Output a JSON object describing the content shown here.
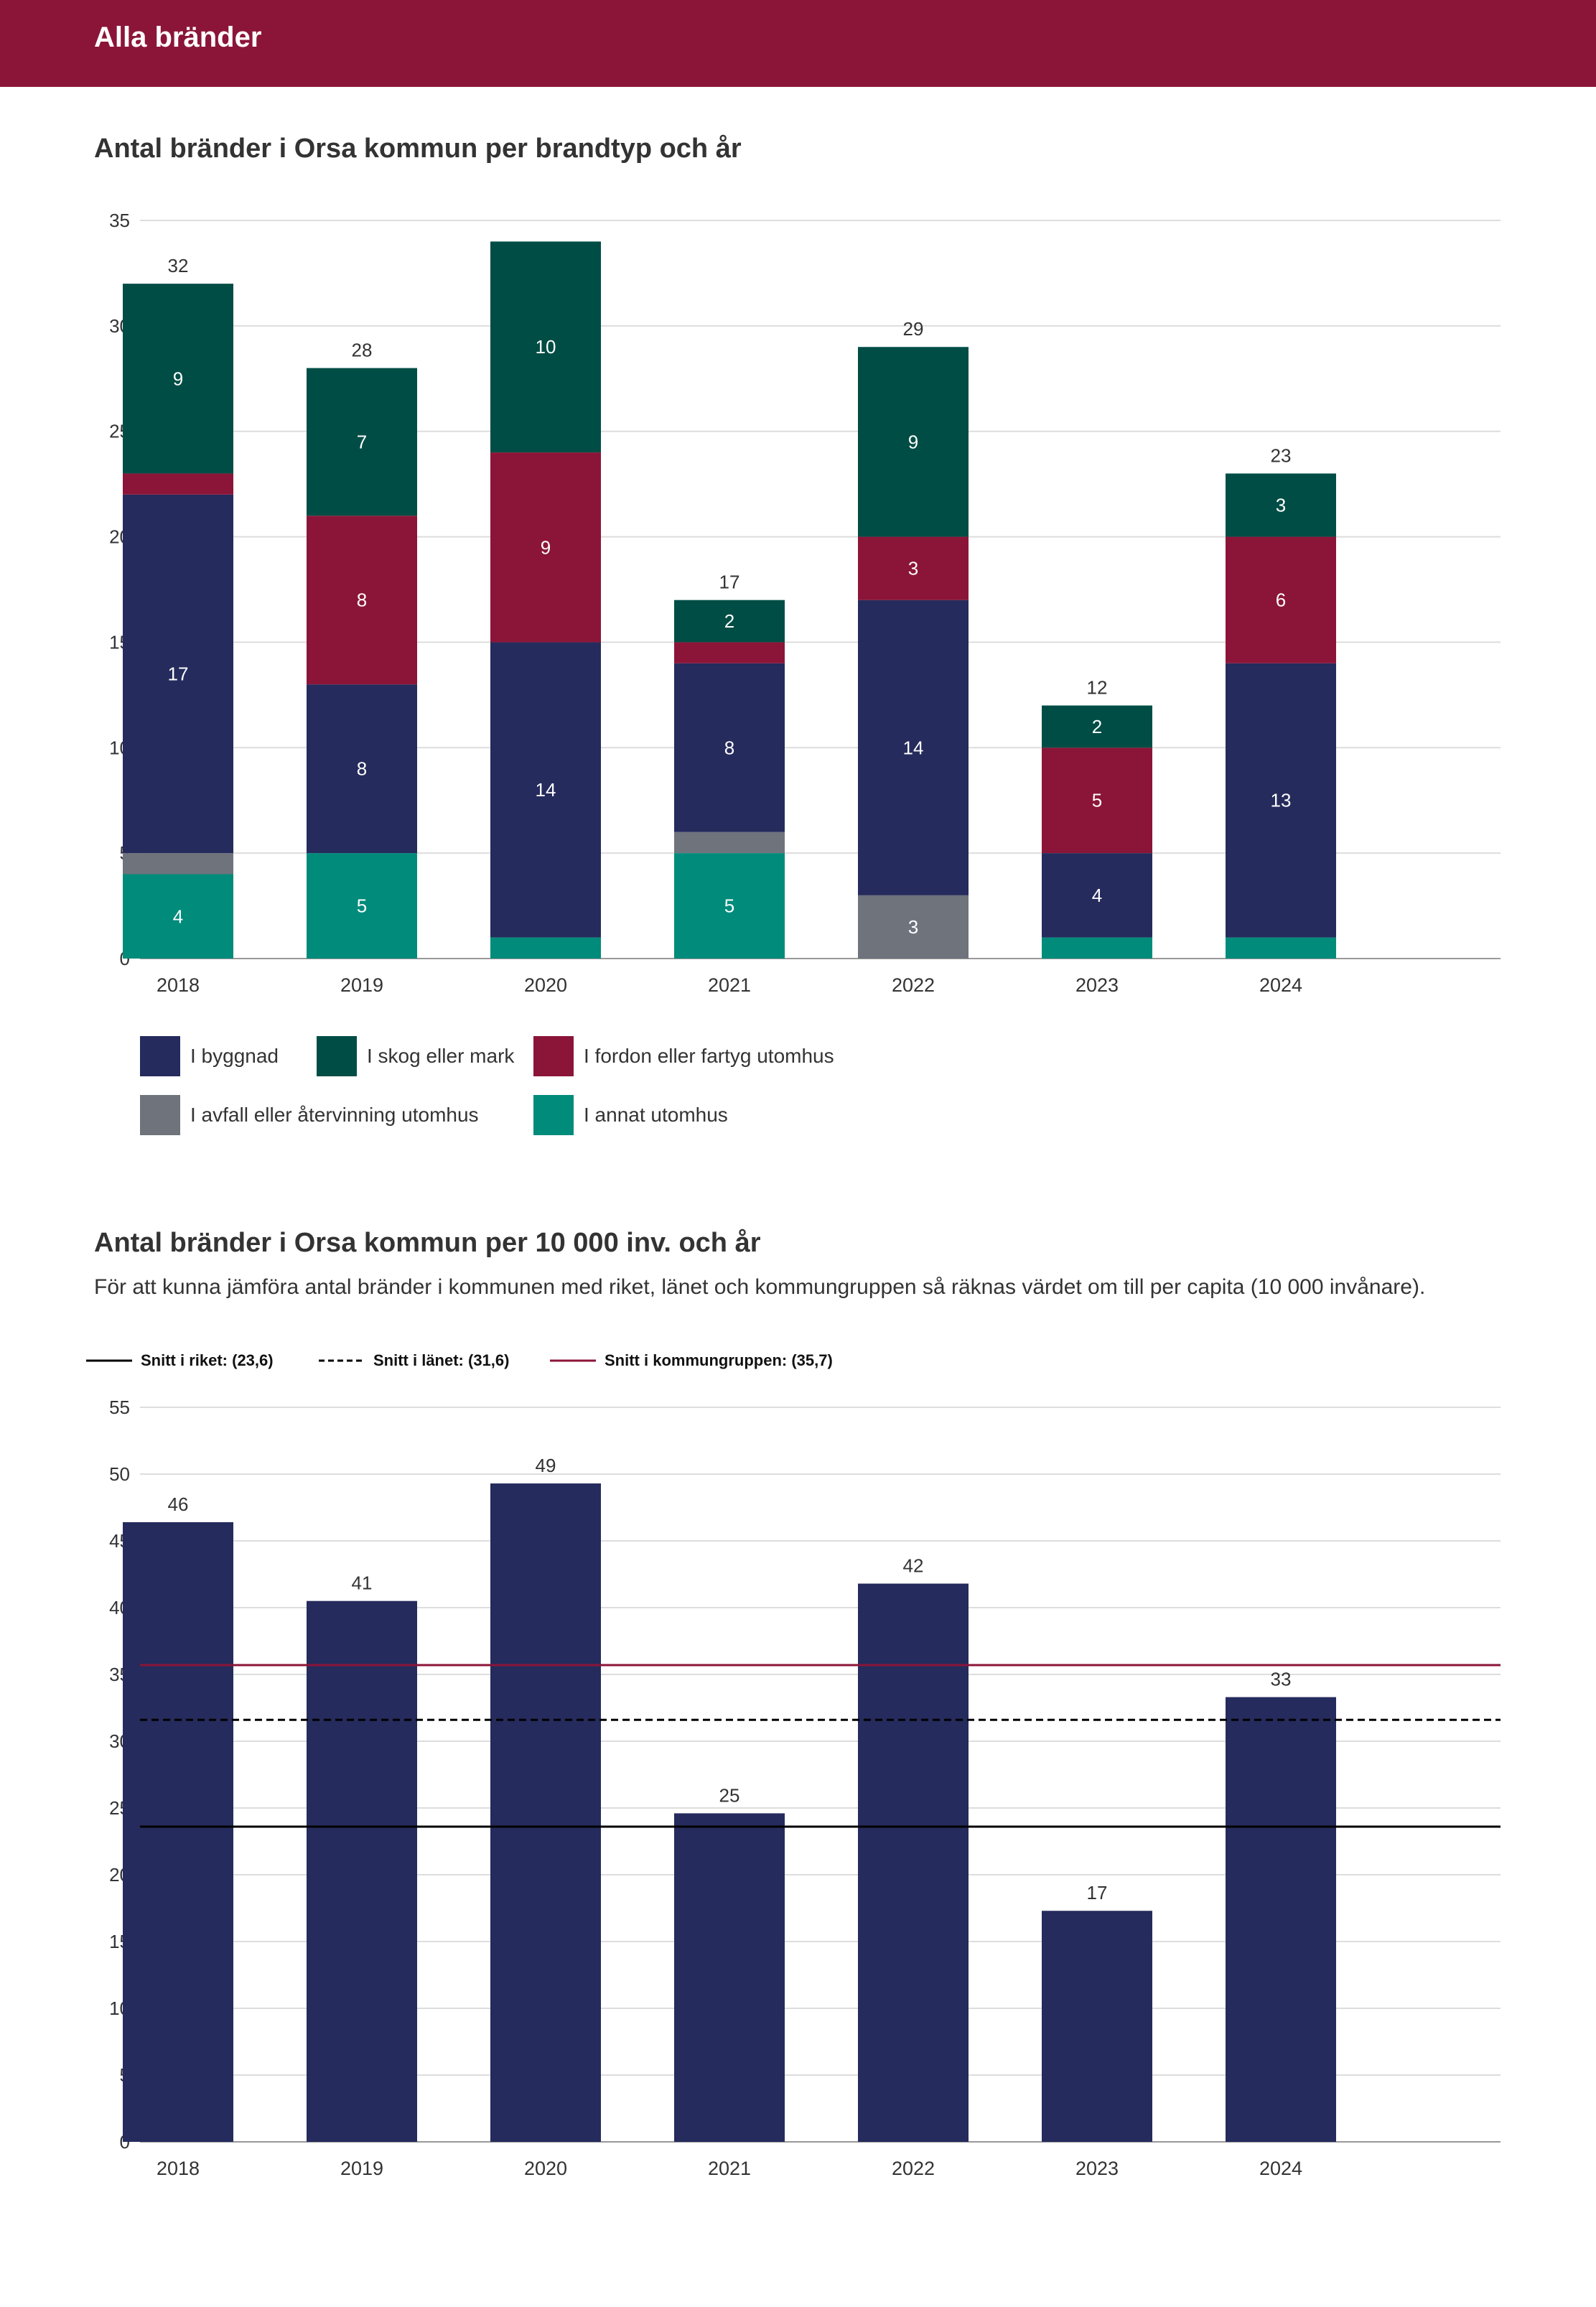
{
  "header": {
    "title": "Alla bränder"
  },
  "sections": [
    {
      "title": "Antal bränder i Orsa kommun per brandtyp och år"
    },
    {
      "title": "Antal bränder i Orsa kommun per 10 000 inv. och år",
      "subtitle": "För att kunna jämföra antal bränder i kommunen med riket, länet och kommungruppen så räknas värdet om till per capita (10 000 invånare)."
    }
  ],
  "colors": {
    "brand": "#8b1538",
    "byggnad": "#252b5c",
    "skog": "#004d45",
    "fordon": "#8b1538",
    "avfall": "#6e737c",
    "annat": "#008b7b",
    "bar2": "#252b5c",
    "line_riket": "#000000",
    "line_lanet": "#000000",
    "line_kommungrupp": "#8b1538"
  },
  "chart_data": [
    {
      "type": "bar",
      "stacked": true,
      "title": "Antal bränder i Orsa kommun per brandtyp och år",
      "categories": [
        "2018",
        "2019",
        "2020",
        "2021",
        "2022",
        "2023",
        "2024"
      ],
      "ylim": [
        0,
        35
      ],
      "yticks": [
        "0",
        "5",
        "10",
        "15",
        "20",
        "25",
        "30",
        "35"
      ],
      "grid": true,
      "series": [
        {
          "name": "I annat utomhus",
          "key": "annat",
          "values": [
            4,
            5,
            1,
            5,
            0,
            1,
            1
          ],
          "labels": [
            "4",
            "5",
            "",
            "5",
            "",
            "",
            ""
          ]
        },
        {
          "name": "I avfall eller återvinning utomhus",
          "key": "avfall",
          "values": [
            1,
            0,
            0,
            1,
            3,
            0,
            0
          ],
          "labels": [
            "",
            "",
            "",
            "",
            "3",
            "",
            ""
          ]
        },
        {
          "name": "I byggnad",
          "key": "byggnad",
          "values": [
            17,
            8,
            14,
            8,
            14,
            4,
            13
          ],
          "labels": [
            "17",
            "8",
            "14",
            "8",
            "14",
            "4",
            "13"
          ]
        },
        {
          "name": "I fordon eller fartyg utomhus",
          "key": "fordon",
          "values": [
            1,
            8,
            9,
            1,
            3,
            5,
            6
          ],
          "labels": [
            "",
            "8",
            "9",
            "",
            "3",
            "5",
            "6"
          ]
        },
        {
          "name": "I skog eller mark",
          "key": "skog",
          "values": [
            9,
            7,
            10,
            2,
            9,
            2,
            3
          ],
          "labels": [
            "9",
            "7",
            "10",
            "2",
            "9",
            "2",
            "3"
          ]
        }
      ],
      "totals": [
        "32",
        "28",
        "",
        "17",
        "29",
        "12",
        "23"
      ],
      "legend": [
        {
          "label": "I byggnad",
          "key": "byggnad"
        },
        {
          "label": "I skog eller mark",
          "key": "skog"
        },
        {
          "label": "I fordon eller fartyg utomhus",
          "key": "fordon"
        },
        {
          "label": "I avfall eller återvinning utomhus",
          "key": "avfall"
        },
        {
          "label": "I annat utomhus",
          "key": "annat"
        }
      ]
    },
    {
      "type": "bar",
      "title": "Antal bränder i Orsa kommun per 10 000 inv. och år",
      "categories": [
        "2018",
        "2019",
        "2020",
        "2021",
        "2022",
        "2023",
        "2024"
      ],
      "values": [
        46.4,
        40.5,
        49.3,
        24.6,
        41.8,
        17.3,
        33.3
      ],
      "labels": [
        "46",
        "41",
        "49",
        "25",
        "42",
        "17",
        "33"
      ],
      "ylim": [
        0,
        55
      ],
      "yticks": [
        "0",
        "5",
        "10",
        "15",
        "20",
        "25",
        "30",
        "35",
        "40",
        "45",
        "50",
        "55"
      ],
      "grid": true,
      "reference_lines": [
        {
          "label": "Snitt i riket: (23,6)",
          "value": 23.6,
          "style": "solid",
          "key": "line_riket"
        },
        {
          "label": "Snitt i länet: (31,6)",
          "value": 31.6,
          "style": "dashed",
          "key": "line_lanet"
        },
        {
          "label": "Snitt i kommungruppen: (35,7)",
          "value": 35.7,
          "style": "solid",
          "key": "line_kommungrupp"
        }
      ]
    }
  ]
}
